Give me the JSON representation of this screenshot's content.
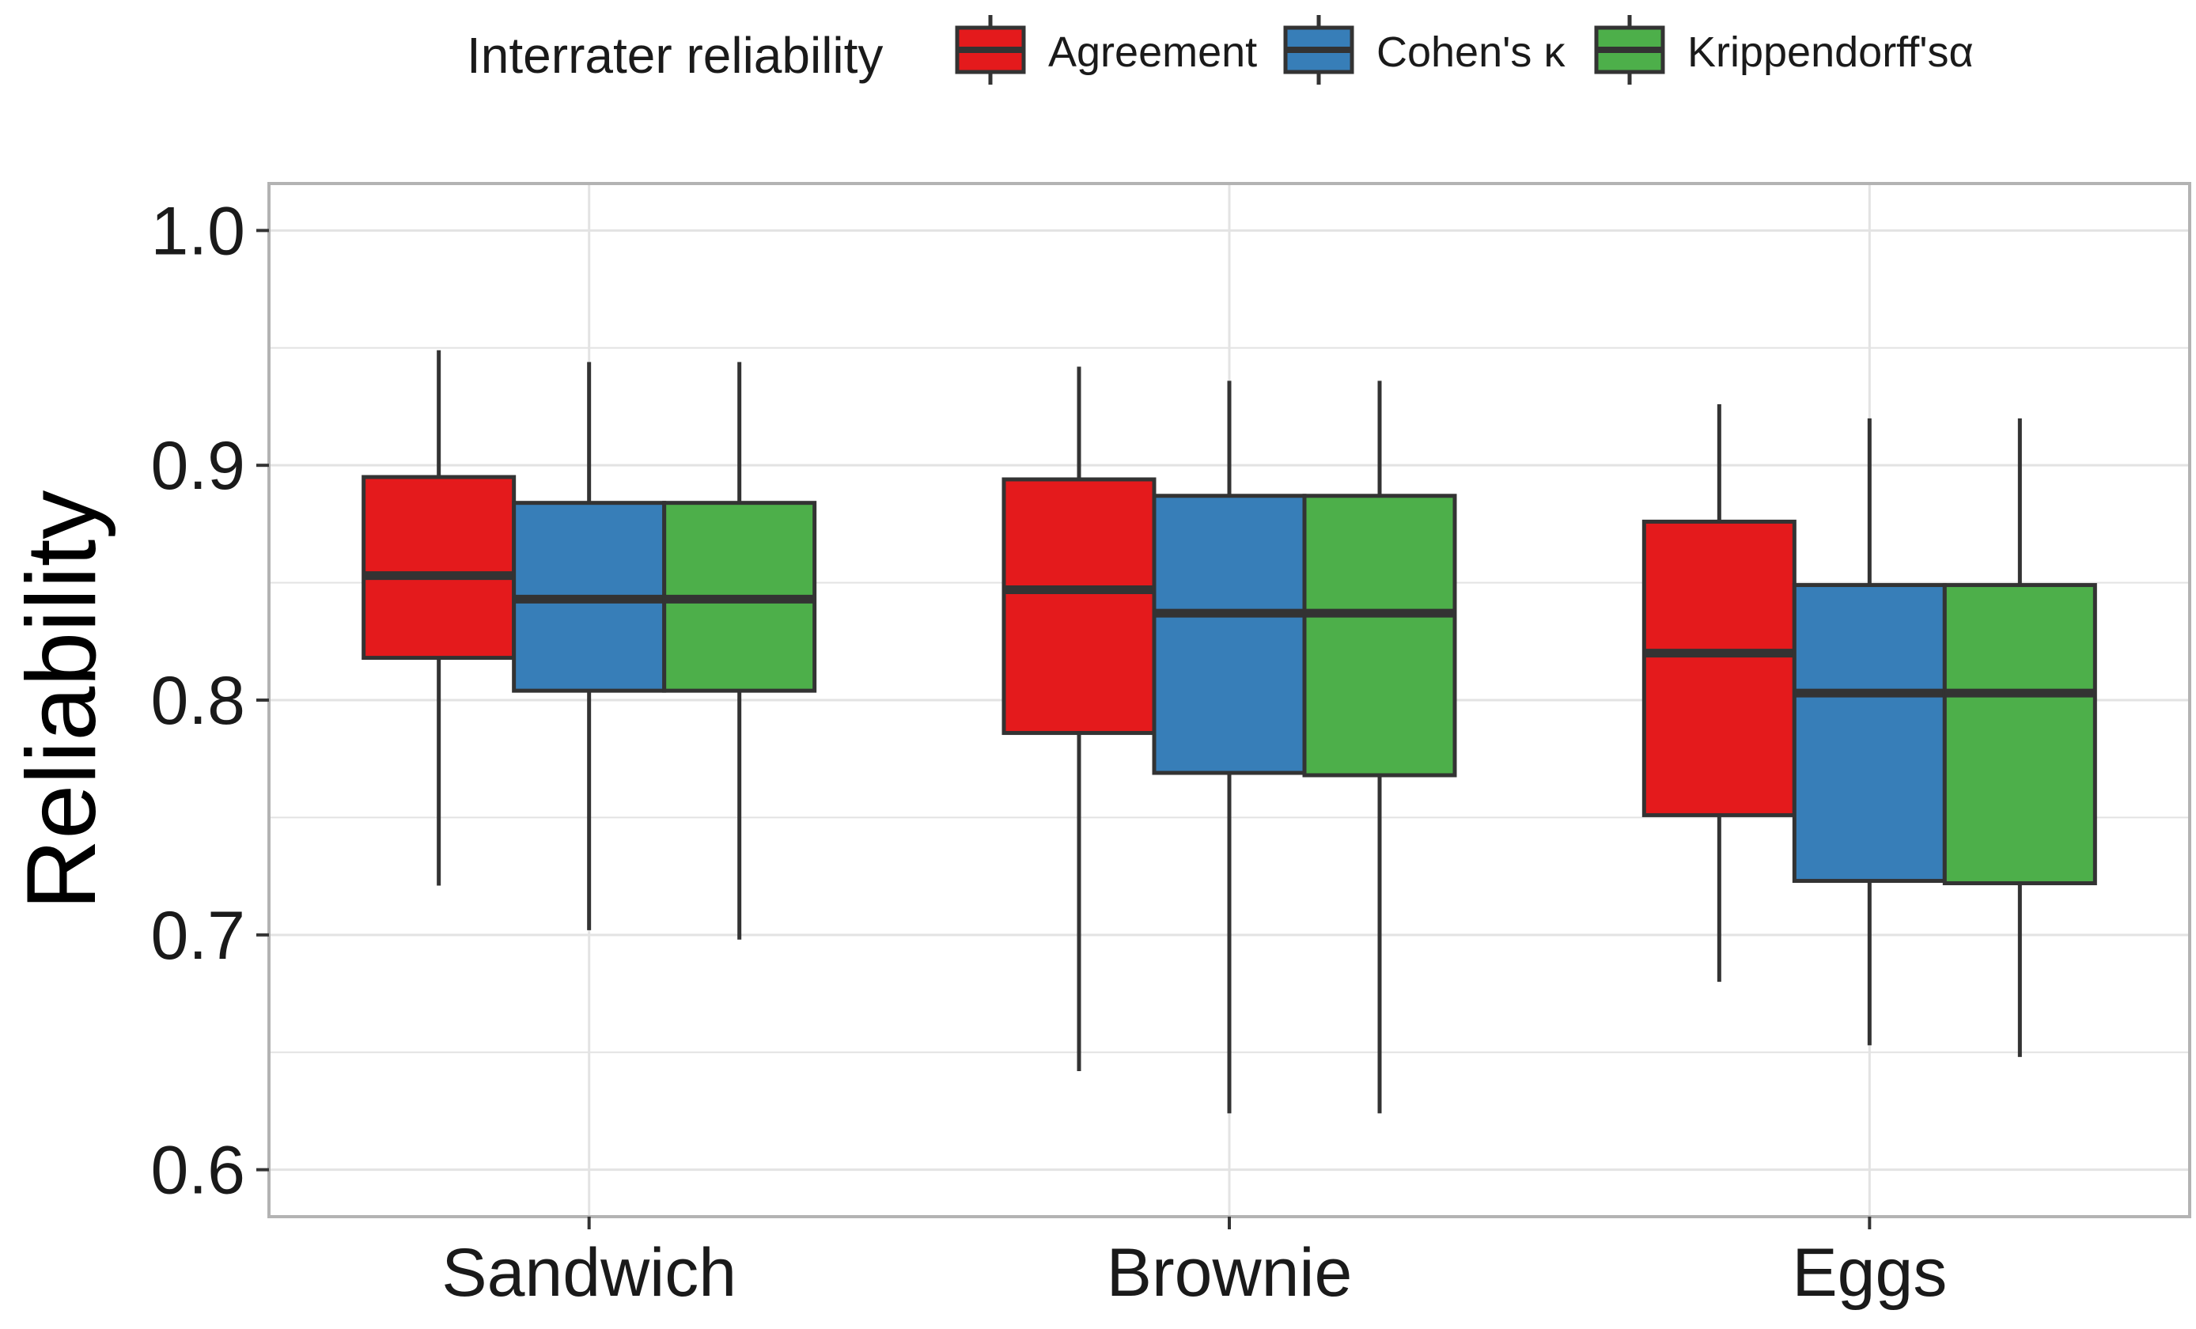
{
  "chart_data": {
    "type": "boxplot",
    "title": "",
    "xlabel": "",
    "ylabel": "Reliability",
    "ylim": [
      0.58,
      1.02
    ],
    "yticks": [
      "0.6",
      "0.7",
      "0.8",
      "0.9",
      "1.0"
    ],
    "ytick_values": [
      0.6,
      0.7,
      0.8,
      0.9,
      1.0
    ],
    "grid": true,
    "legend": {
      "title": "Interrater reliability",
      "position": "top",
      "entries": [
        "Agreement",
        "Cohen's κ",
        "Krippendorff'sα"
      ]
    },
    "categories": [
      "Sandwich",
      "Brownie",
      "Eggs"
    ],
    "series": [
      {
        "name": "Agreement",
        "color": "#E41A1C",
        "boxes": [
          {
            "min": 0.721,
            "q1": 0.818,
            "median": 0.853,
            "q3": 0.895,
            "max": 0.949
          },
          {
            "min": 0.642,
            "q1": 0.786,
            "median": 0.847,
            "q3": 0.894,
            "max": 0.942
          },
          {
            "min": 0.68,
            "q1": 0.751,
            "median": 0.82,
            "q3": 0.876,
            "max": 0.926
          }
        ]
      },
      {
        "name": "Cohen's κ",
        "color": "#377EB8",
        "boxes": [
          {
            "min": 0.702,
            "q1": 0.804,
            "median": 0.843,
            "q3": 0.884,
            "max": 0.944
          },
          {
            "min": 0.624,
            "q1": 0.769,
            "median": 0.837,
            "q3": 0.887,
            "max": 0.936
          },
          {
            "min": 0.653,
            "q1": 0.723,
            "median": 0.803,
            "q3": 0.849,
            "max": 0.92
          }
        ]
      },
      {
        "name": "Krippendorff'sα",
        "color": "#4DAF4A",
        "boxes": [
          {
            "min": 0.698,
            "q1": 0.804,
            "median": 0.843,
            "q3": 0.884,
            "max": 0.944
          },
          {
            "min": 0.624,
            "q1": 0.768,
            "median": 0.837,
            "q3": 0.887,
            "max": 0.936
          },
          {
            "min": 0.648,
            "q1": 0.722,
            "median": 0.803,
            "q3": 0.849,
            "max": 0.92
          }
        ]
      }
    ]
  }
}
